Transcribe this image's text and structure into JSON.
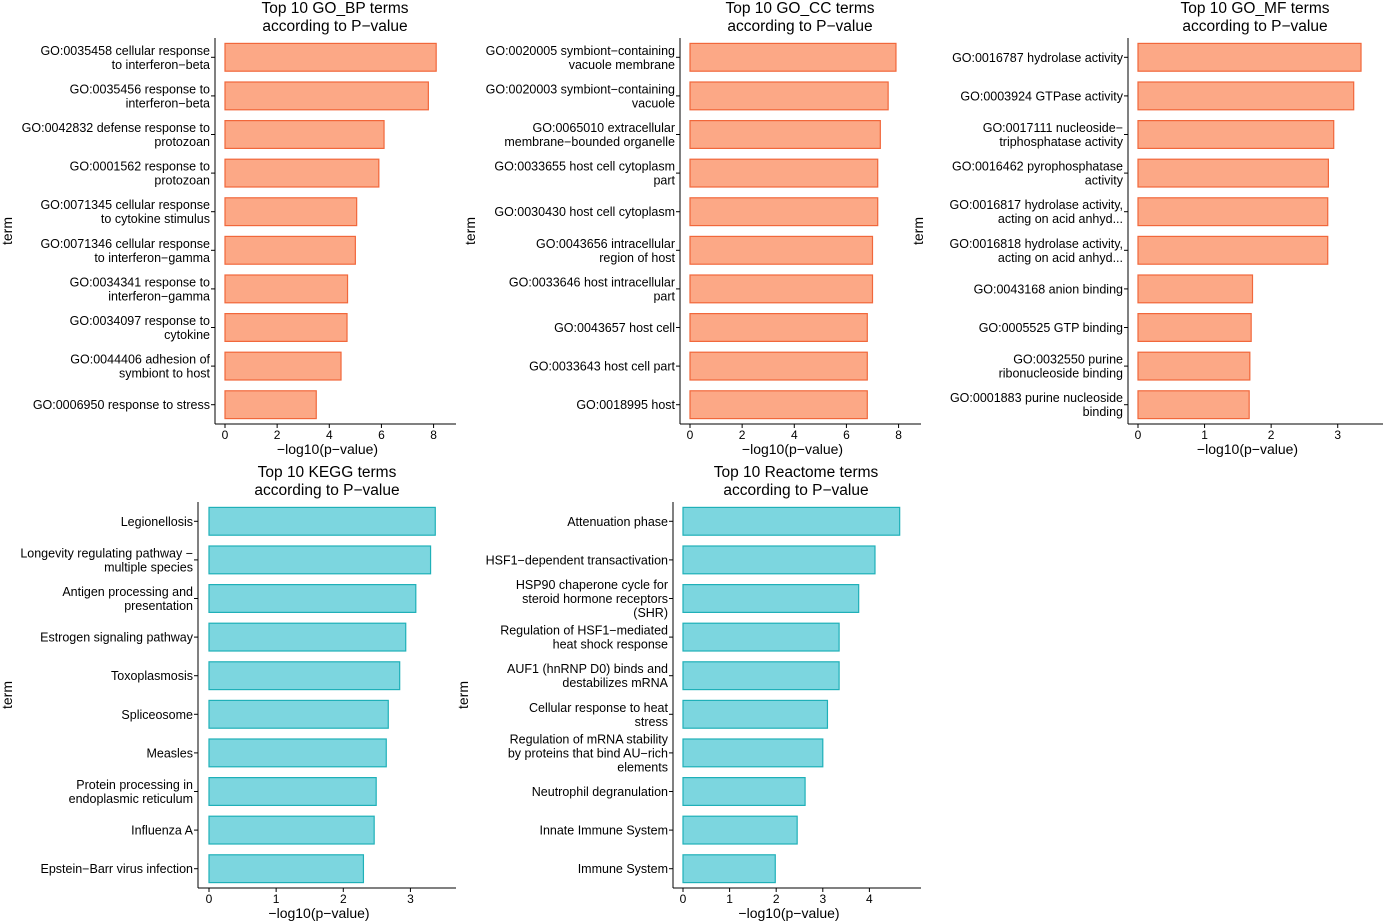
{
  "colors": {
    "go_fill": "#FCA886",
    "go_stroke": "#F1673B",
    "path_fill": "#7CD6DF",
    "path_stroke": "#1FB0B8"
  },
  "chart_data": [
    {
      "id": "go-bp",
      "type": "bar",
      "orientation": "horizontal",
      "title": [
        "Top 10 GO_BP terms",
        "according to P−value"
      ],
      "xlabel": "−log10(p−value)",
      "ylabel": "term",
      "xlim": [
        0,
        8.4
      ],
      "xticks": [
        "0",
        "2",
        "4",
        "6",
        "8"
      ],
      "color_key": "go",
      "categories": [
        [
          "GO:0035458 cellular response",
          "to interferon−beta"
        ],
        [
          "GO:0035456 response to",
          "interferon−beta"
        ],
        [
          "GO:0042832 defense response to",
          "protozoan"
        ],
        [
          "GO:0001562 response to",
          "protozoan"
        ],
        [
          "GO:0071345 cellular response",
          "to cytokine stimulus"
        ],
        [
          "GO:0071346 cellular response",
          "to interferon−gamma"
        ],
        [
          "GO:0034341 response to",
          "interferon−gamma"
        ],
        [
          "GO:0034097 response to",
          "cytokine"
        ],
        [
          "GO:0044406 adhesion of",
          "symbiont to host"
        ],
        [
          "GO:0006950 response to stress"
        ]
      ],
      "values": [
        8.1,
        7.8,
        6.1,
        5.9,
        5.05,
        5.0,
        4.7,
        4.68,
        4.45,
        3.5
      ]
    },
    {
      "id": "go-cc",
      "type": "bar",
      "orientation": "horizontal",
      "title": [
        "Top 10 GO_CC terms",
        "according to P−value"
      ],
      "xlabel": "−log10(p−value)",
      "ylabel": "term",
      "xlim": [
        0,
        8.4
      ],
      "xticks": [
        "0",
        "2",
        "4",
        "6",
        "8"
      ],
      "color_key": "go",
      "categories": [
        [
          "GO:0020005 symbiont−containing",
          "vacuole membrane"
        ],
        [
          "GO:0020003 symbiont−containing",
          "vacuole"
        ],
        [
          "GO:0065010 extracellular",
          "membrane−bounded organelle"
        ],
        [
          "GO:0033655 host cell cytoplasm",
          "part"
        ],
        [
          "GO:0030430 host cell cytoplasm"
        ],
        [
          "GO:0043656 intracellular",
          "region of host"
        ],
        [
          "GO:0033646 host intracellular",
          "part"
        ],
        [
          "GO:0043657 host cell"
        ],
        [
          "GO:0033643 host cell part"
        ],
        [
          "GO:0018995 host"
        ]
      ],
      "values": [
        7.9,
        7.6,
        7.3,
        7.2,
        7.2,
        7.0,
        7.0,
        6.8,
        6.8,
        6.8
      ]
    },
    {
      "id": "go-mf",
      "type": "bar",
      "orientation": "horizontal",
      "title": [
        "Top 10 GO_MF terms",
        "according to P−value"
      ],
      "xlabel": "−log10(p−value)",
      "ylabel": "term",
      "xlim": [
        0,
        3.5
      ],
      "xticks": [
        "0",
        "1",
        "2",
        "3"
      ],
      "color_key": "go",
      "categories": [
        [
          "GO:0016787 hydrolase activity"
        ],
        [
          "GO:0003924 GTPase activity"
        ],
        [
          "GO:0017111 nucleoside−",
          "triphosphatase activity"
        ],
        [
          "GO:0016462 pyrophosphatase",
          "activity"
        ],
        [
          "GO:0016817 hydrolase activity,",
          "acting on acid anhyd..."
        ],
        [
          "GO:0016818 hydrolase activity,",
          "acting on acid anhyd..."
        ],
        [
          "GO:0043168 anion binding"
        ],
        [
          "GO:0005525 GTP binding"
        ],
        [
          "GO:0032550 purine",
          "ribonucleoside binding"
        ],
        [
          "GO:0001883 purine nucleoside",
          "binding"
        ]
      ],
      "values": [
        3.35,
        3.24,
        2.94,
        2.86,
        2.85,
        2.85,
        1.72,
        1.7,
        1.68,
        1.67
      ]
    },
    {
      "id": "kegg",
      "type": "bar",
      "orientation": "horizontal",
      "title": [
        "Top 10 KEGG terms",
        "according to P−value"
      ],
      "xlabel": "−log10(p−value)",
      "ylabel": "term",
      "xlim": [
        0,
        3.5
      ],
      "xticks": [
        "0",
        "1",
        "2",
        "3"
      ],
      "color_key": "path",
      "categories": [
        [
          "Legionellosis"
        ],
        [
          "Longevity regulating pathway −",
          "multiple species"
        ],
        [
          "Antigen processing and",
          "presentation"
        ],
        [
          "Estrogen signaling pathway"
        ],
        [
          "Toxoplasmosis"
        ],
        [
          "Spliceosome"
        ],
        [
          "Measles"
        ],
        [
          "Protein processing in",
          "endoplasmic reticulum"
        ],
        [
          "Influenza A"
        ],
        [
          "Epstein−Barr virus infection"
        ]
      ],
      "values": [
        3.37,
        3.3,
        3.08,
        2.93,
        2.84,
        2.67,
        2.64,
        2.49,
        2.46,
        2.3
      ]
    },
    {
      "id": "reactome",
      "type": "bar",
      "orientation": "horizontal",
      "title": [
        "Top 10 Reactome terms",
        "according to P−value"
      ],
      "xlabel": "−log10(p−value)",
      "ylabel": "term",
      "xlim": [
        0,
        4.85
      ],
      "xticks": [
        "0",
        "1",
        "2",
        "3",
        "4"
      ],
      "color_key": "path",
      "categories": [
        [
          "Attenuation phase"
        ],
        [
          "HSF1−dependent transactivation"
        ],
        [
          "HSP90 chaperone cycle for",
          "steroid hormone receptors",
          "(SHR)"
        ],
        [
          "Regulation of HSF1−mediated",
          "heat shock response"
        ],
        [
          "AUF1 (hnRNP D0) binds and",
          "destabilizes mRNA"
        ],
        [
          "Cellular response to heat",
          "stress"
        ],
        [
          "Regulation of mRNA stability",
          "by proteins that bind AU−rich",
          "elements"
        ],
        [
          "Neutrophil degranulation"
        ],
        [
          "Innate Immune System"
        ],
        [
          "Immune System"
        ]
      ],
      "values": [
        4.65,
        4.12,
        3.77,
        3.35,
        3.35,
        3.1,
        3.0,
        2.62,
        2.45,
        1.98
      ]
    }
  ]
}
